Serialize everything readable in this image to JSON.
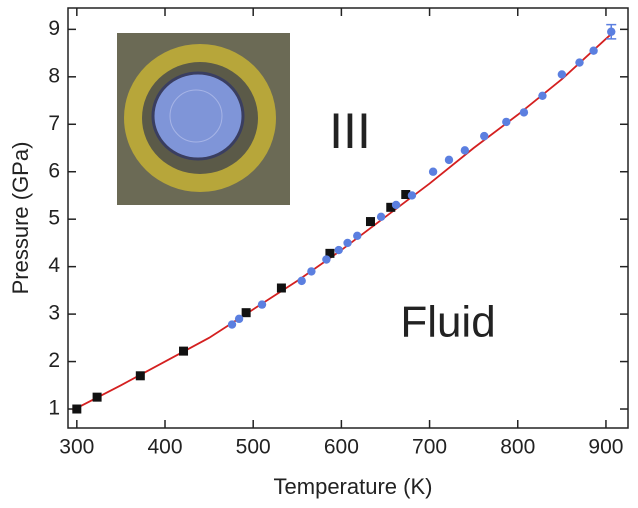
{
  "chart_data": {
    "type": "scatter",
    "x_label": "Temperature (K)",
    "y_label": "Pressure (GPa)",
    "annotations": [
      "III",
      "Fluid"
    ],
    "xlim": [
      290,
      925
    ],
    "ylim": [
      0.6,
      9.45
    ],
    "xticks": [
      300,
      400,
      500,
      600,
      700,
      800,
      900
    ],
    "yticks": [
      1,
      2,
      3,
      4,
      5,
      6,
      7,
      8,
      9
    ],
    "series": [
      {
        "color": "#111111",
        "marker": "square",
        "x": [
          300,
          323,
          372,
          421,
          492,
          532,
          587,
          633,
          656,
          673
        ],
        "values": [
          1.0,
          1.25,
          1.7,
          2.22,
          3.03,
          3.55,
          4.28,
          4.95,
          5.25,
          5.52
        ]
      },
      {
        "color": "#5b7fe0",
        "marker": "circle",
        "x": [
          476,
          484,
          510,
          555,
          566,
          583,
          597,
          607,
          618,
          645,
          662,
          680,
          704,
          722,
          740,
          762,
          787,
          807,
          828,
          850,
          870,
          886,
          906
        ],
        "values": [
          2.78,
          2.9,
          3.2,
          3.7,
          3.9,
          4.15,
          4.35,
          4.5,
          4.65,
          5.05,
          5.3,
          5.5,
          6.0,
          6.25,
          6.45,
          6.75,
          7.05,
          7.25,
          7.6,
          8.05,
          8.3,
          8.55,
          8.95
        ],
        "errors": [
          null,
          null,
          null,
          null,
          null,
          null,
          null,
          null,
          null,
          null,
          null,
          null,
          null,
          null,
          null,
          null,
          null,
          null,
          null,
          null,
          null,
          null,
          0.15
        ]
      }
    ],
    "fit": {
      "color": "#d42020",
      "x": [
        295,
        300,
        350,
        400,
        450,
        500,
        550,
        600,
        650,
        700,
        750,
        800,
        850,
        900,
        910
      ],
      "values": [
        0.97,
        1.02,
        1.5,
        2.0,
        2.5,
        3.1,
        3.7,
        4.35,
        5.05,
        5.75,
        6.5,
        7.2,
        7.95,
        8.8,
        8.97
      ]
    }
  }
}
